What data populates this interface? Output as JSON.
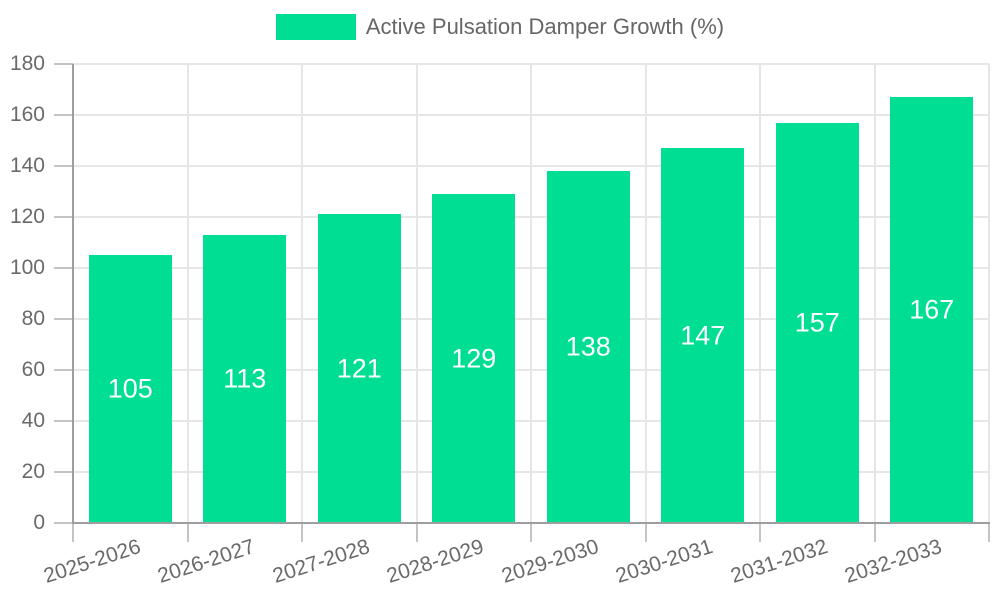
{
  "chart_data": {
    "type": "bar",
    "title": "Active Pulsation Damper Growth (%)",
    "legend": {
      "position": "top-center",
      "entries": [
        {
          "label": "Active Pulsation Damper Growth (%)",
          "color": "#00DE94"
        }
      ]
    },
    "categories": [
      "2025-2026",
      "2026-2027",
      "2027-2028",
      "2028-2029",
      "2029-2030",
      "2030-2031",
      "2031-2032",
      "2032-2033"
    ],
    "values": [
      105,
      113,
      121,
      129,
      138,
      147,
      157,
      167
    ],
    "value_labels": [
      "105",
      "113",
      "121",
      "129",
      "138",
      "147",
      "157",
      "167"
    ],
    "yticks": [
      "0",
      "20",
      "40",
      "60",
      "80",
      "100",
      "120",
      "140",
      "160",
      "180"
    ],
    "ylim": [
      0,
      180
    ],
    "xlabel": "",
    "ylabel": "",
    "grid": true,
    "colors": {
      "bar": "#00DE94",
      "grid": "#E6E6E6",
      "axis": "#9E9E9E",
      "tick_mark": "#C4C4C4",
      "tick_text": "#6A6A6A",
      "legend_text": "#666666",
      "value_label": "#FFFFFF",
      "background": "#FFFFFF"
    }
  }
}
